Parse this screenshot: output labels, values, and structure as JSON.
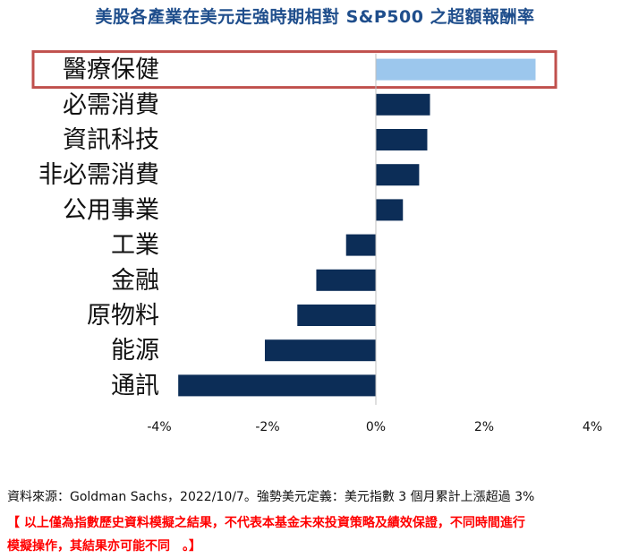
{
  "title": "美股各產業在美元走強時期相對 S&P500 之超額報酬率",
  "chart_data": {
    "type": "bar",
    "orientation": "horizontal",
    "title": "美股各產業在美元走強時期相對 S&P500 之超額報酬率",
    "categories": [
      "醫療保健",
      "必需消費",
      "資訊科技",
      "非必需消費",
      "公用事業",
      "工業",
      "金融",
      "原物料",
      "能源",
      "通訊"
    ],
    "values": [
      2.95,
      1.0,
      0.95,
      0.8,
      0.5,
      -0.55,
      -1.1,
      -1.45,
      -2.05,
      -3.65
    ],
    "xlim": [
      -4,
      4
    ],
    "xticks": [
      -4,
      -2,
      0,
      2,
      4
    ],
    "xtick_labels": [
      "-4%",
      "-2%",
      "0%",
      "2%",
      "4%"
    ],
    "highlight_category": "醫療保健",
    "colors": {
      "bar": "#0c2d57",
      "highlight_bar": "#9cc7ed",
      "highlight_box": "#c0504d",
      "axis": "#bfbfbf"
    }
  },
  "footer": {
    "source": "資料來源：Goldman Sachs，2022/10/7。強勢美元定義：美元指數 3 個月累計上漲超過 3%",
    "disclaimer_line1": "【 以上僅為指數歷史資料模擬之結果，不代表本基金未來投資策略及績效保證，不同時間進行",
    "disclaimer_line2": "模擬操作，其結果亦可能不同　。】"
  }
}
